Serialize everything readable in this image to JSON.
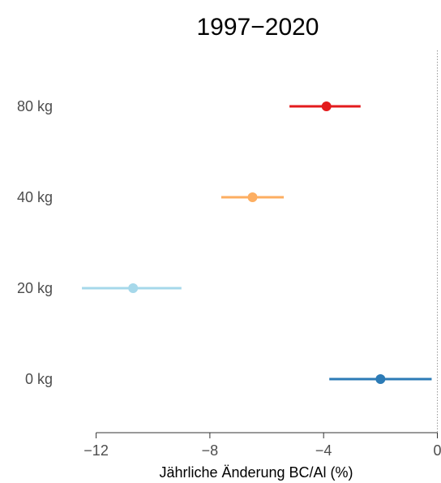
{
  "chart_data": {
    "type": "forest",
    "title": "1997−2020",
    "xlabel": "Jährliche Änderung BC/Al (%)",
    "ylabel": "",
    "xlim": [
      -13.1,
      0.1
    ],
    "x_ticks": [
      -12,
      -8,
      -4,
      0
    ],
    "x_tick_labels": [
      "−12",
      "−8",
      "−4",
      "0"
    ],
    "reference_line": {
      "x": 0,
      "style": "dotted"
    },
    "categories": [
      "80 kg",
      "40 kg",
      "20 kg",
      "0 kg"
    ],
    "series": [
      {
        "category": "80 kg",
        "estimate": -3.9,
        "lower": -5.2,
        "upper": -2.7,
        "color": "#e31a1c"
      },
      {
        "category": "40 kg",
        "estimate": -6.5,
        "lower": -7.6,
        "upper": -5.4,
        "color": "#fdae61"
      },
      {
        "category": "20 kg",
        "estimate": -10.7,
        "lower": -12.5,
        "upper": -9.0,
        "color": "#a6d8ea"
      },
      {
        "category": "0 kg",
        "estimate": -2.0,
        "lower": -3.8,
        "upper": -0.2,
        "color": "#2c7bb6"
      }
    ],
    "grid": false
  }
}
